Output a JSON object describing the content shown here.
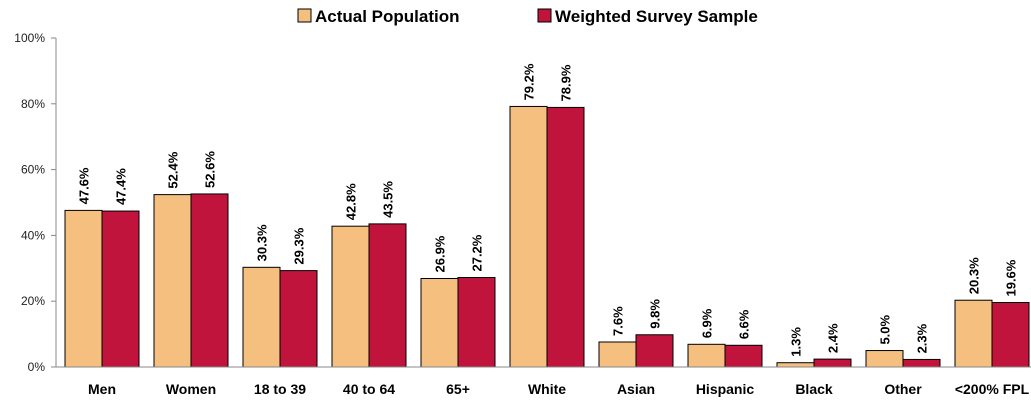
{
  "chart_data": {
    "type": "bar",
    "categories": [
      "Men",
      "Women",
      "18 to 39",
      "40 to 64",
      "65+",
      "White",
      "Asian",
      "Hispanic",
      "Black",
      "Other",
      "<200% FPL"
    ],
    "series": [
      {
        "name": "Actual Population",
        "color": "#F5BF7F",
        "values": [
          47.6,
          52.4,
          30.3,
          42.8,
          26.9,
          79.2,
          7.6,
          6.9,
          1.3,
          5.0,
          20.3
        ],
        "labels": [
          "47.6%",
          "52.4%",
          "30.3%",
          "42.8%",
          "26.9%",
          "79.2%",
          "7.6%",
          "6.9%",
          "1.3%",
          "5.0%",
          "20.3%"
        ]
      },
      {
        "name": "Weighted Survey Sample",
        "color": "#C0143C",
        "values": [
          47.4,
          52.6,
          29.3,
          43.5,
          27.2,
          78.9,
          9.8,
          6.6,
          2.4,
          2.3,
          19.6
        ],
        "labels": [
          "47.4%",
          "52.6%",
          "29.3%",
          "43.5%",
          "27.2%",
          "78.9%",
          "9.8%",
          "6.6%",
          "2.4%",
          "2.3%",
          "19.6%"
        ]
      }
    ],
    "ylim": [
      0,
      100
    ],
    "yticks": [
      0,
      20,
      40,
      60,
      80,
      100
    ],
    "ytick_labels": [
      "0%",
      "20%",
      "40%",
      "60%",
      "80%",
      "100%"
    ],
    "grid": false,
    "legend_position": "top-center"
  }
}
